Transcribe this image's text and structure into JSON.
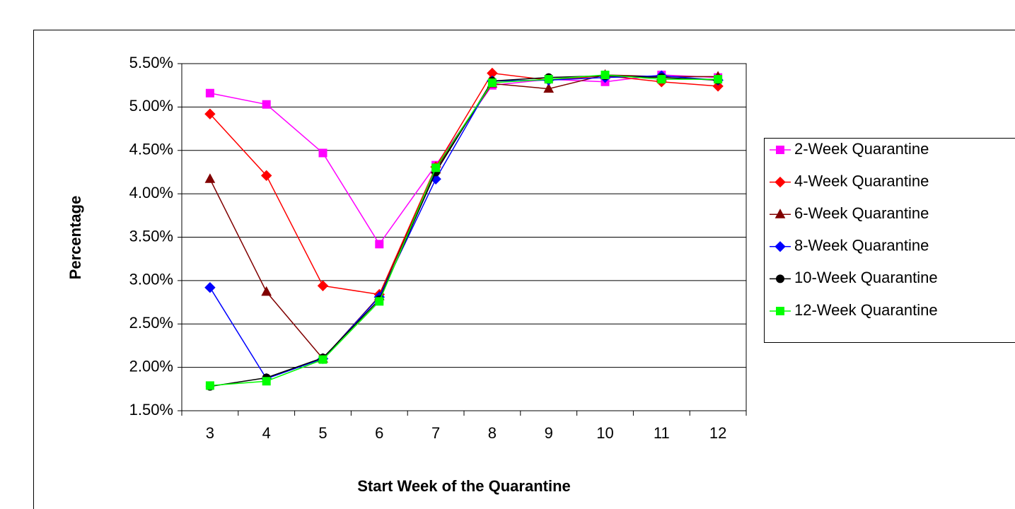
{
  "chart_data": {
    "type": "line",
    "y_label": "Percentage",
    "x_label": "Start Week of the Quarantine",
    "categories": [
      "3",
      "4",
      "5",
      "6",
      "7",
      "8",
      "9",
      "10",
      "11",
      "12"
    ],
    "ylim": [
      1.5,
      5.5
    ],
    "yticks": [
      {
        "value": 1.5,
        "label": "1.50%"
      },
      {
        "value": 2.0,
        "label": "2.00%"
      },
      {
        "value": 2.5,
        "label": "2.50%"
      },
      {
        "value": 3.0,
        "label": "3.00%"
      },
      {
        "value": 3.5,
        "label": "3.50%"
      },
      {
        "value": 4.0,
        "label": "4.00%"
      },
      {
        "value": 4.5,
        "label": "4.50%"
      },
      {
        "value": 5.0,
        "label": "5.00%"
      },
      {
        "value": 5.5,
        "label": "5.50%"
      }
    ],
    "grid": true,
    "legend": "right",
    "series": [
      {
        "name": "2-Week Quarantine",
        "color": "#ff00ff",
        "marker": "square",
        "values": [
          5.16,
          5.03,
          4.47,
          3.42,
          4.33,
          5.25,
          5.32,
          5.29,
          5.37,
          5.34
        ]
      },
      {
        "name": "4-Week Quarantine",
        "color": "#ff0000",
        "marker": "diamond",
        "values": [
          4.92,
          4.21,
          2.94,
          2.84,
          4.31,
          5.39,
          5.31,
          5.36,
          5.29,
          5.24
        ]
      },
      {
        "name": "6-Week Quarantine",
        "color": "#800000",
        "marker": "triangle",
        "values": [
          4.17,
          2.87,
          2.1,
          2.82,
          4.28,
          5.27,
          5.21,
          5.37,
          5.35,
          5.35
        ]
      },
      {
        "name": "8-Week Quarantine",
        "color": "#0000ff",
        "marker": "diamond",
        "values": [
          2.92,
          1.87,
          2.1,
          2.81,
          4.17,
          5.3,
          5.31,
          5.34,
          5.36,
          5.31
        ]
      },
      {
        "name": "10-Week Quarantine",
        "color": "#000000",
        "marker": "circle",
        "values": [
          1.78,
          1.88,
          2.11,
          2.78,
          4.25,
          5.3,
          5.34,
          5.36,
          5.34,
          5.31
        ]
      },
      {
        "name": "12-Week Quarantine",
        "color": "#00ff00",
        "marker": "square",
        "values": [
          1.79,
          1.84,
          2.09,
          2.76,
          4.3,
          5.28,
          5.32,
          5.37,
          5.32,
          5.32
        ]
      }
    ]
  }
}
